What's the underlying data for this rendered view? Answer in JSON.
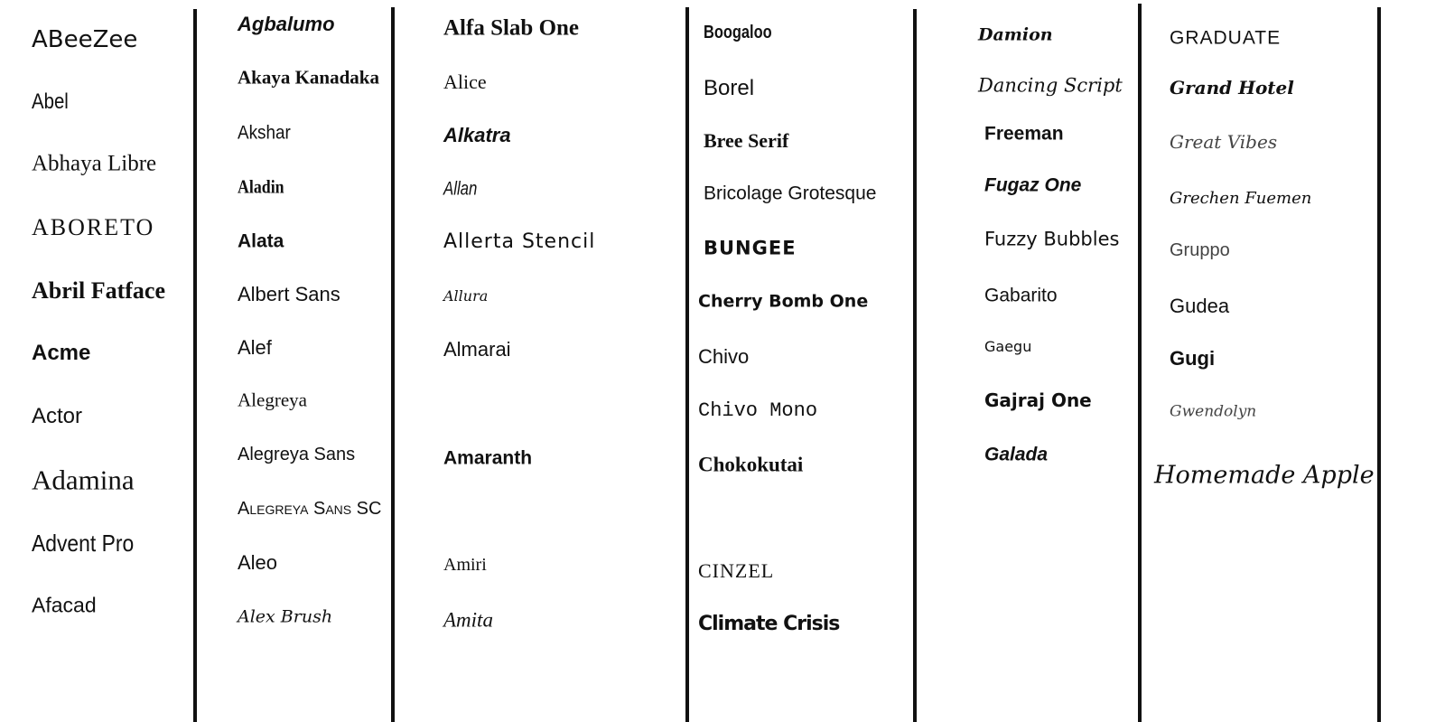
{
  "columns": [
    {
      "fonts": [
        "ABeeZee",
        "Abel",
        "Abhaya Libre",
        "ABORETO",
        "Abril Fatface",
        "Acme",
        "Actor",
        "Adamina",
        "Advent Pro",
        "Afacad"
      ]
    },
    {
      "fonts": [
        "Agbalumo",
        "Akaya Kanadaka",
        "Akshar",
        "Aladin",
        "Alata",
        "Albert Sans",
        "Alef",
        "Alegreya",
        "Alegreya Sans",
        "Alegreya Sans SC",
        "Aleo",
        "Alex Brush"
      ]
    },
    {
      "fonts": [
        "Alfa Slab One",
        "Alice",
        "Alkatra",
        "Allan",
        "Allerta Stencil",
        "Allura",
        "Almarai",
        "Amaranth",
        "Amiri",
        "Amita"
      ]
    },
    {
      "fonts": [
        "Boogaloo",
        "Borel",
        "Bree Serif",
        "Bricolage Grotesque",
        "BUNGEE",
        "Cherry Bomb One",
        "Chivo",
        "Chivo Mono",
        "Chokokutai",
        "CINZEL",
        "Climate Crisis"
      ]
    },
    {
      "fonts": [
        "Damion",
        "Dancing Script",
        "Freeman",
        "Fugaz One",
        "Fuzzy Bubbles",
        "Gabarito",
        "Gaegu",
        "Gajraj One",
        "Galada"
      ]
    },
    {
      "fonts": [
        "GRADUATE",
        "Grand Hotel",
        "Great Vibes",
        "Grechen Fuemen",
        "Gruppo",
        "Gudea",
        "Gugi",
        "Gwendolyn",
        "Homemade Apple"
      ]
    }
  ]
}
